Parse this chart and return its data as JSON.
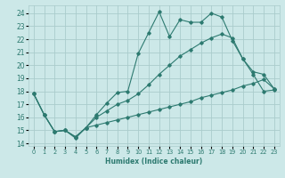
{
  "xlabel": "Humidex (Indice chaleur)",
  "bg_color": "#cce8e8",
  "grid_color": "#aacccc",
  "line_color": "#2d7a70",
  "xlim": [
    -0.5,
    23.5
  ],
  "ylim": [
    13.8,
    24.6
  ],
  "xticks": [
    0,
    1,
    2,
    3,
    4,
    5,
    6,
    7,
    8,
    9,
    10,
    11,
    12,
    13,
    14,
    15,
    16,
    17,
    18,
    19,
    20,
    21,
    22,
    23
  ],
  "yticks": [
    14,
    15,
    16,
    17,
    18,
    19,
    20,
    21,
    22,
    23,
    24
  ],
  "line1_x": [
    0,
    1,
    2,
    3,
    4,
    5,
    6,
    7,
    8,
    9,
    10,
    11,
    12,
    13,
    14,
    15,
    16,
    17,
    18,
    19,
    20,
    21,
    22,
    23
  ],
  "line1_y": [
    17.8,
    16.2,
    14.9,
    15.0,
    14.4,
    15.2,
    16.2,
    17.1,
    17.9,
    18.0,
    20.9,
    22.5,
    24.1,
    22.2,
    23.5,
    23.3,
    23.3,
    24.0,
    23.7,
    21.9,
    20.5,
    19.3,
    18.0,
    18.1
  ],
  "line2_x": [
    0,
    1,
    2,
    3,
    4,
    5,
    6,
    7,
    8,
    9,
    10,
    11,
    12,
    13,
    14,
    15,
    16,
    17,
    18,
    19,
    20,
    21,
    22,
    23
  ],
  "line2_y": [
    17.8,
    16.2,
    14.9,
    15.0,
    14.5,
    15.2,
    16.0,
    16.5,
    17.0,
    17.3,
    17.8,
    18.5,
    19.3,
    20.0,
    20.7,
    21.2,
    21.7,
    22.1,
    22.4,
    22.1,
    20.5,
    19.5,
    19.3,
    18.2
  ],
  "line3_x": [
    0,
    1,
    2,
    3,
    4,
    5,
    6,
    7,
    8,
    9,
    10,
    11,
    12,
    13,
    14,
    15,
    16,
    17,
    18,
    19,
    20,
    21,
    22,
    23
  ],
  "line3_y": [
    17.8,
    16.2,
    14.9,
    15.0,
    14.5,
    15.2,
    15.4,
    15.6,
    15.8,
    16.0,
    16.2,
    16.4,
    16.6,
    16.8,
    17.0,
    17.2,
    17.5,
    17.7,
    17.9,
    18.1,
    18.4,
    18.6,
    18.9,
    18.2
  ]
}
